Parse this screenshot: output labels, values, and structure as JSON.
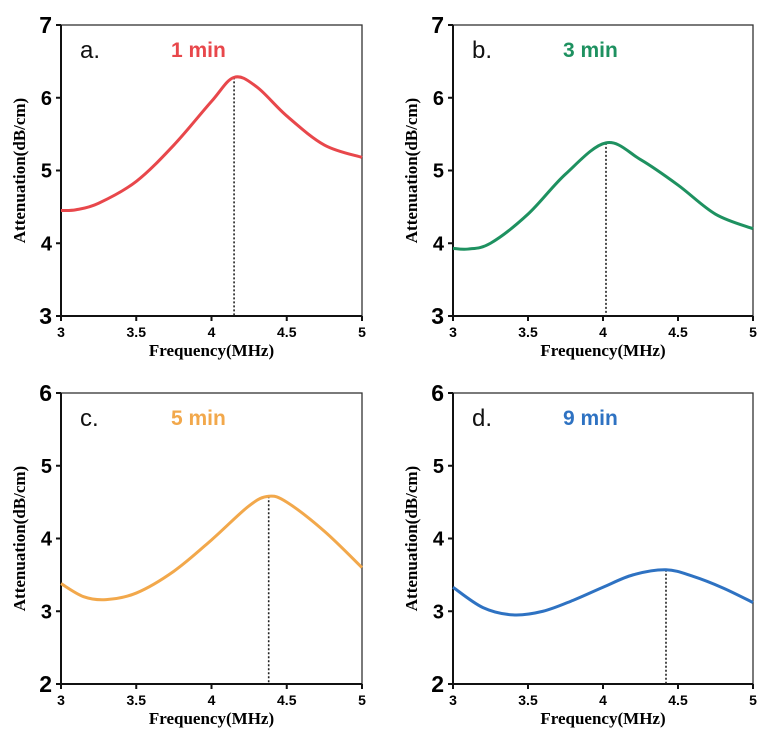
{
  "chart_data": [
    {
      "type": "line",
      "panel": "a.",
      "title": "1 min",
      "color": "#e8474b",
      "xlabel": "Frequency(MHz)",
      "ylabel": "Attenuation(dB/cm)",
      "xlim": [
        3,
        5
      ],
      "ylim": [
        3,
        7
      ],
      "xticks": [
        "3",
        "3.5",
        "4",
        "4.5",
        "5"
      ],
      "yticks": [
        "3",
        "4",
        "5",
        "6",
        "7"
      ],
      "peak_x": 4.15,
      "x": [
        3,
        3.1,
        3.25,
        3.5,
        3.75,
        4,
        4.15,
        4.3,
        4.5,
        4.75,
        5
      ],
      "y": [
        4.45,
        4.46,
        4.55,
        4.85,
        5.35,
        5.95,
        6.28,
        6.15,
        5.75,
        5.35,
        5.18
      ]
    },
    {
      "type": "line",
      "panel": "b.",
      "title": "3 min",
      "color": "#1e9160",
      "xlabel": "Frequency(MHz)",
      "ylabel": "Attenuation(dB/cm)",
      "xlim": [
        3,
        5
      ],
      "ylim": [
        3,
        7
      ],
      "xticks": [
        "3",
        "3.5",
        "4",
        "4.5",
        "5"
      ],
      "yticks": [
        "3",
        "4",
        "5",
        "6",
        "7"
      ],
      "peak_x": 4.02,
      "x": [
        3,
        3.1,
        3.25,
        3.5,
        3.75,
        4.02,
        4.25,
        4.5,
        4.75,
        5
      ],
      "y": [
        3.93,
        3.92,
        4.0,
        4.4,
        4.95,
        5.38,
        5.15,
        4.8,
        4.4,
        4.2
      ]
    },
    {
      "type": "line",
      "panel": "c.",
      "title": "5 min",
      "color": "#f2a84b",
      "xlabel": "Frequency(MHz)",
      "ylabel": "Attenuation(dB/cm)",
      "xlim": [
        3,
        5
      ],
      "ylim": [
        2,
        6
      ],
      "xticks": [
        "3",
        "3.5",
        "4",
        "4.5",
        "5"
      ],
      "yticks": [
        "2",
        "3",
        "4",
        "5",
        "6"
      ],
      "peak_x": 4.38,
      "x": [
        3,
        3.15,
        3.3,
        3.5,
        3.75,
        4,
        4.25,
        4.38,
        4.5,
        4.75,
        5
      ],
      "y": [
        3.38,
        3.2,
        3.16,
        3.25,
        3.55,
        3.98,
        4.45,
        4.58,
        4.5,
        4.1,
        3.6
      ]
    },
    {
      "type": "line",
      "panel": "d.",
      "title": "9 min",
      "color": "#2e72c2",
      "xlabel": "Frequency(MHz)",
      "ylabel": "Attenuation(dB/cm)",
      "xlim": [
        3,
        5
      ],
      "ylim": [
        2,
        6
      ],
      "xticks": [
        "3",
        "3.5",
        "4",
        "4.5",
        "5"
      ],
      "yticks": [
        "2",
        "3",
        "4",
        "5",
        "6"
      ],
      "peak_x": 4.42,
      "x": [
        3,
        3.2,
        3.4,
        3.6,
        3.8,
        4,
        4.2,
        4.42,
        4.6,
        4.8,
        5
      ],
      "y": [
        3.33,
        3.05,
        2.95,
        3.0,
        3.15,
        3.33,
        3.5,
        3.57,
        3.48,
        3.32,
        3.12
      ]
    }
  ]
}
